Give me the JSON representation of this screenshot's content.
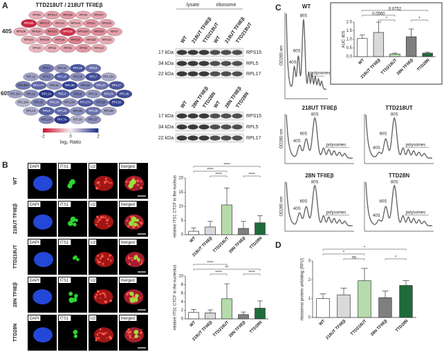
{
  "panels": {
    "a": "A",
    "b": "B",
    "c": "C",
    "d": "D"
  },
  "panel_a": {
    "title": "TTD218UT / 218UT TFIIEβ",
    "groups": [
      {
        "name": "40S",
        "proteins": [
          "RPS8",
          "RPS14",
          "RPS15",
          "RPS6",
          "RPS27",
          "RPS28",
          "RPS13",
          "RPS11",
          "RPS4X",
          "RPSA",
          "RPS25",
          "RPS26",
          "RPS3A",
          "RPS21",
          "RPS18",
          "RPS15A",
          "RPS23",
          "RPS7",
          "RPS24",
          "RPS29",
          "RPS16",
          "RPS19",
          "RPS20",
          "RPS10",
          "RPS9",
          "RPS2",
          "RPS5",
          "RPS3",
          "RPS12"
        ],
        "log2_ratio": [
          -0.6,
          -0.7,
          -0.8,
          -0.6,
          -0.7,
          -1.8,
          -0.9,
          -0.7,
          -0.6,
          -0.8,
          -0.7,
          -0.6,
          -0.7,
          -1,
          -1.7,
          -0.8,
          -0.9,
          -0.7,
          -0.6,
          -0.7,
          -0.8,
          -1,
          -0.7,
          -0.6,
          -0.5,
          -0.6,
          -0.7,
          -0.8,
          -0.6
        ]
      },
      {
        "name": "60S",
        "proteins": [
          "RPL3",
          "RPL10",
          "RPL19",
          "RPL8",
          "RPL12",
          "RPL6",
          "RPL23",
          "RPL18",
          "RPL7",
          "RPL13A",
          "RPL35A",
          "RPL27A",
          "RPL11",
          "RPL30",
          "RPL15",
          "RPL27",
          "RPL17",
          "RPL36A",
          "RPL21",
          "RPL14",
          "RPL4",
          "RPL9",
          "RPL31",
          "RPL34",
          "RPL35",
          "RPL18A",
          "RPL26",
          "RPL24",
          "RPL23A",
          "RPL37A",
          "RPL28",
          "RPL32",
          "RPL13",
          "RPL5",
          "RPL22",
          "RPL38",
          "RPL29",
          "RPL36",
          "RPL10A",
          "RPL7A",
          "RPL39",
          "RPL37"
        ],
        "log2_ratio": [
          1.2,
          0.9,
          1.6,
          1.3,
          0.8,
          1.1,
          1.5,
          1,
          1.7,
          0.7,
          1.2,
          1.4,
          0.9,
          1.8,
          1.1,
          1.3,
          1.6,
          0.8,
          1,
          1.9,
          1.5,
          1.2,
          0.9,
          1.4,
          1.7,
          0.6,
          1.1,
          1.3,
          0.9,
          1.6,
          1.2,
          1.8,
          0.7,
          1.5,
          1.4,
          1,
          1.3,
          0.8,
          1.1,
          1.9,
          0.6,
          1
        ]
      }
    ],
    "colorbar": {
      "lim": [
        -2,
        2
      ],
      "ticks": [
        -2,
        0,
        2
      ],
      "label": "log₂ Ratio"
    },
    "blots": [
      {
        "headers": [
          "lysate",
          "ribosome"
        ],
        "lanes": [
          "WT",
          "218UT TFIIEβ",
          "TTD218UT",
          "WT",
          "218UT TFIIEβ",
          "TTD218UT"
        ],
        "markers": [
          "17 kDa",
          "34 kDa",
          "22 kDa"
        ],
        "proteins": [
          "RPS15",
          "RPL5",
          "RPL17"
        ]
      },
      {
        "lanes": [
          "WT",
          "28N TFIIEβ",
          "TTD28N",
          "WT",
          "28N TFIIEβ",
          "TTD28N"
        ],
        "markers": [
          "17 kDa",
          "34 kDa",
          "22 kDa"
        ],
        "proteins": [
          "RPS15",
          "RPL5",
          "RPL17"
        ]
      }
    ]
  },
  "panel_b": {
    "channels": [
      "DAPI",
      "ITS1",
      "U2",
      "merged"
    ],
    "rows": [
      "WT",
      "218UT TFIIEβ",
      "TTD218UT",
      "28N TFIIEβ",
      "TTD28N"
    ]
  },
  "panel_c": {
    "profiles": [
      "WT",
      "218UT TFIIEβ",
      "TTD218UT",
      "28N TFIIEβ",
      "TTD28N"
    ],
    "ylabel": "OD260 nm",
    "peaks": [
      "40S",
      "60S",
      "80S"
    ],
    "polysomes": "polysomes"
  },
  "chart_data": [
    {
      "type": "bar",
      "ylabel": "relative ITS1 CTCF in the nucleus",
      "categories": [
        "WT",
        "218UT TFIIEβ",
        "TTD218UT",
        "28N TFIIEβ",
        "TTD28N"
      ],
      "values": [
        1.2,
        2.7,
        10.5,
        2.2,
        4.2
      ],
      "errors": [
        1.2,
        2,
        6,
        2.5,
        2.5
      ],
      "colors": [
        "#ffffff",
        "#d9d9d9",
        "#b5dcaa",
        "#7f7f7f",
        "#1f6b3a"
      ],
      "ylim": [
        0,
        20
      ],
      "yticks": [
        0,
        5,
        10,
        15,
        20
      ],
      "annotations": [
        "****",
        "****",
        "****",
        "****"
      ]
    },
    {
      "type": "bar",
      "ylabel": "relative ITS1 CTCF in the nucleolus",
      "categories": [
        "WT",
        "218UT TFIIEβ",
        "TTD218UT",
        "28N TFIIEβ",
        "TTD28N"
      ],
      "values": [
        1.5,
        1.4,
        4.7,
        1,
        2.5
      ],
      "errors": [
        0.7,
        0.7,
        3.5,
        0.6,
        1.7
      ],
      "colors": [
        "#ffffff",
        "#d9d9d9",
        "#b5dcaa",
        "#7f7f7f",
        "#1f6b3a"
      ],
      "ylim": [
        0,
        10
      ],
      "yticks": [
        0,
        2,
        4,
        6,
        8,
        10
      ],
      "annotations": [
        "****",
        "**",
        "****",
        "****"
      ]
    },
    {
      "type": "bar",
      "ylabel": "AUC 40S",
      "categories": [
        "WT",
        "218UT TFIIEβ",
        "TTD218UT",
        "28N TFIIEβ",
        "TTD28N"
      ],
      "values": [
        1.05,
        1.4,
        0.15,
        1.15,
        0.2
      ],
      "errors": [
        0.2,
        0.6,
        0.05,
        0.45,
        0.05
      ],
      "colors": [
        "#ffffff",
        "#d9d9d9",
        "#b5dcaa",
        "#7f7f7f",
        "#1f6b3a"
      ],
      "ylim": [
        0,
        2
      ],
      "yticks": [
        {
          "value": 0,
          "label": "0.0"
        },
        0.5,
        {
          "value": 1,
          "label": "1.0"
        },
        1.5,
        {
          "value": 2,
          "label": "2.0"
        }
      ],
      "annotations": [
        "0.0752",
        "0.0560",
        "*",
        "*"
      ]
    },
    {
      "type": "bar",
      "ylabel": "ribosomal protein unfolding (RFU)",
      "categories": [
        "WT",
        "218UT TFIIEβ",
        "TTD218UT",
        "28N TFIIEβ",
        "TTD28N"
      ],
      "values": [
        1,
        1.2,
        1.95,
        1.05,
        1.7
      ],
      "errors": [
        0.25,
        0.35,
        0.65,
        0.35,
        0.25
      ],
      "colors": [
        "#ffffff",
        "#d9d9d9",
        "#b5dcaa",
        "#7f7f7f",
        "#1f6b3a"
      ],
      "ylim": [
        0,
        3
      ],
      "yticks": [
        0,
        1,
        2,
        3
      ],
      "annotations": [
        "*",
        "*",
        "ns",
        "*"
      ]
    }
  ]
}
